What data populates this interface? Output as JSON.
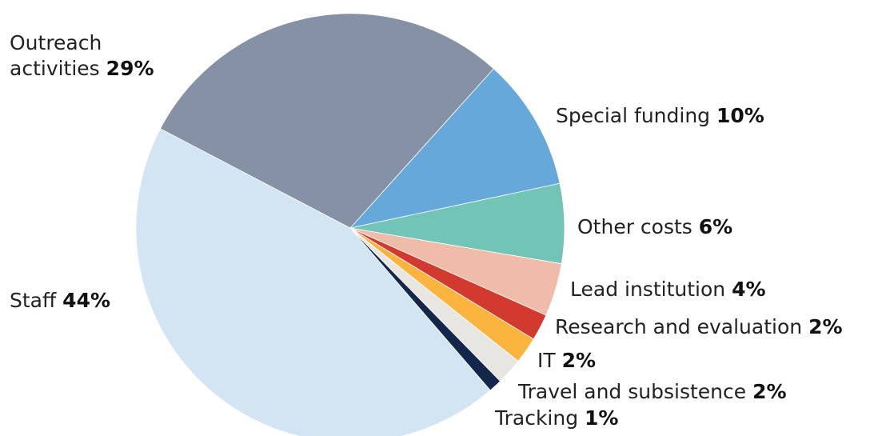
{
  "chart_data": {
    "type": "pie",
    "categories": [
      "Special funding",
      "Other costs",
      "Lead institution",
      "Research and evaluation",
      "IT",
      "Travel and subsistence",
      "Tracking",
      "Staff",
      "Outreach activities"
    ],
    "values": [
      10,
      6,
      4,
      2,
      2,
      2,
      1,
      44,
      29
    ],
    "value_labels": [
      "10%",
      "6%",
      "4%",
      "2%",
      "2%",
      "2%",
      "1%",
      "44%",
      "29%"
    ],
    "colors": [
      "#67a8da",
      "#72c4b6",
      "#f0bcaa",
      "#d23a30",
      "#fbb43e",
      "#e8e6e1",
      "#14264a",
      "#d3e5f3",
      "#8591a5"
    ]
  }
}
